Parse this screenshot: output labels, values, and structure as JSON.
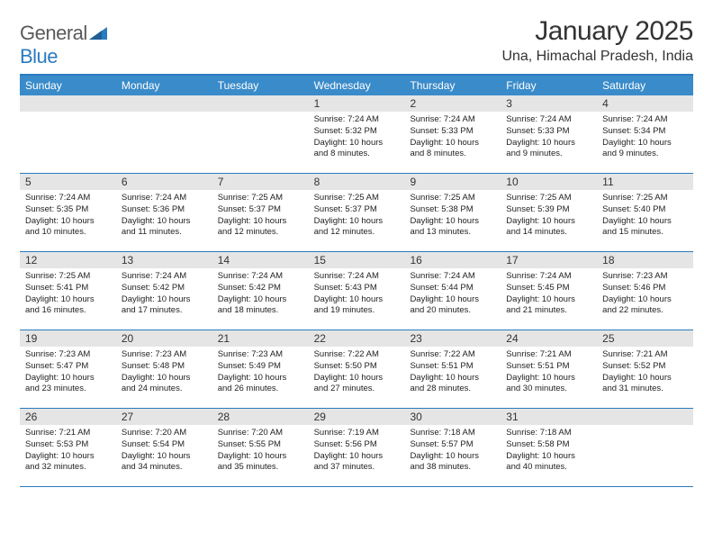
{
  "logo": {
    "wordA": "General",
    "wordB": "Blue"
  },
  "title": "January 2025",
  "location": "Una, Himachal Pradesh, India",
  "weekdays": [
    "Sunday",
    "Monday",
    "Tuesday",
    "Wednesday",
    "Thursday",
    "Friday",
    "Saturday"
  ],
  "colors": {
    "header_bar": "#3a8bc9",
    "border": "#2b7bbf",
    "daynum_bg": "#e5e5e5",
    "text": "#333333"
  },
  "weeks": [
    [
      null,
      null,
      null,
      {
        "n": "1",
        "sr": "Sunrise: 7:24 AM",
        "ss": "Sunset: 5:32 PM",
        "dl": "Daylight: 10 hours and 8 minutes."
      },
      {
        "n": "2",
        "sr": "Sunrise: 7:24 AM",
        "ss": "Sunset: 5:33 PM",
        "dl": "Daylight: 10 hours and 8 minutes."
      },
      {
        "n": "3",
        "sr": "Sunrise: 7:24 AM",
        "ss": "Sunset: 5:33 PM",
        "dl": "Daylight: 10 hours and 9 minutes."
      },
      {
        "n": "4",
        "sr": "Sunrise: 7:24 AM",
        "ss": "Sunset: 5:34 PM",
        "dl": "Daylight: 10 hours and 9 minutes."
      }
    ],
    [
      {
        "n": "5",
        "sr": "Sunrise: 7:24 AM",
        "ss": "Sunset: 5:35 PM",
        "dl": "Daylight: 10 hours and 10 minutes."
      },
      {
        "n": "6",
        "sr": "Sunrise: 7:24 AM",
        "ss": "Sunset: 5:36 PM",
        "dl": "Daylight: 10 hours and 11 minutes."
      },
      {
        "n": "7",
        "sr": "Sunrise: 7:25 AM",
        "ss": "Sunset: 5:37 PM",
        "dl": "Daylight: 10 hours and 12 minutes."
      },
      {
        "n": "8",
        "sr": "Sunrise: 7:25 AM",
        "ss": "Sunset: 5:37 PM",
        "dl": "Daylight: 10 hours and 12 minutes."
      },
      {
        "n": "9",
        "sr": "Sunrise: 7:25 AM",
        "ss": "Sunset: 5:38 PM",
        "dl": "Daylight: 10 hours and 13 minutes."
      },
      {
        "n": "10",
        "sr": "Sunrise: 7:25 AM",
        "ss": "Sunset: 5:39 PM",
        "dl": "Daylight: 10 hours and 14 minutes."
      },
      {
        "n": "11",
        "sr": "Sunrise: 7:25 AM",
        "ss": "Sunset: 5:40 PM",
        "dl": "Daylight: 10 hours and 15 minutes."
      }
    ],
    [
      {
        "n": "12",
        "sr": "Sunrise: 7:25 AM",
        "ss": "Sunset: 5:41 PM",
        "dl": "Daylight: 10 hours and 16 minutes."
      },
      {
        "n": "13",
        "sr": "Sunrise: 7:24 AM",
        "ss": "Sunset: 5:42 PM",
        "dl": "Daylight: 10 hours and 17 minutes."
      },
      {
        "n": "14",
        "sr": "Sunrise: 7:24 AM",
        "ss": "Sunset: 5:42 PM",
        "dl": "Daylight: 10 hours and 18 minutes."
      },
      {
        "n": "15",
        "sr": "Sunrise: 7:24 AM",
        "ss": "Sunset: 5:43 PM",
        "dl": "Daylight: 10 hours and 19 minutes."
      },
      {
        "n": "16",
        "sr": "Sunrise: 7:24 AM",
        "ss": "Sunset: 5:44 PM",
        "dl": "Daylight: 10 hours and 20 minutes."
      },
      {
        "n": "17",
        "sr": "Sunrise: 7:24 AM",
        "ss": "Sunset: 5:45 PM",
        "dl": "Daylight: 10 hours and 21 minutes."
      },
      {
        "n": "18",
        "sr": "Sunrise: 7:23 AM",
        "ss": "Sunset: 5:46 PM",
        "dl": "Daylight: 10 hours and 22 minutes."
      }
    ],
    [
      {
        "n": "19",
        "sr": "Sunrise: 7:23 AM",
        "ss": "Sunset: 5:47 PM",
        "dl": "Daylight: 10 hours and 23 minutes."
      },
      {
        "n": "20",
        "sr": "Sunrise: 7:23 AM",
        "ss": "Sunset: 5:48 PM",
        "dl": "Daylight: 10 hours and 24 minutes."
      },
      {
        "n": "21",
        "sr": "Sunrise: 7:23 AM",
        "ss": "Sunset: 5:49 PM",
        "dl": "Daylight: 10 hours and 26 minutes."
      },
      {
        "n": "22",
        "sr": "Sunrise: 7:22 AM",
        "ss": "Sunset: 5:50 PM",
        "dl": "Daylight: 10 hours and 27 minutes."
      },
      {
        "n": "23",
        "sr": "Sunrise: 7:22 AM",
        "ss": "Sunset: 5:51 PM",
        "dl": "Daylight: 10 hours and 28 minutes."
      },
      {
        "n": "24",
        "sr": "Sunrise: 7:21 AM",
        "ss": "Sunset: 5:51 PM",
        "dl": "Daylight: 10 hours and 30 minutes."
      },
      {
        "n": "25",
        "sr": "Sunrise: 7:21 AM",
        "ss": "Sunset: 5:52 PM",
        "dl": "Daylight: 10 hours and 31 minutes."
      }
    ],
    [
      {
        "n": "26",
        "sr": "Sunrise: 7:21 AM",
        "ss": "Sunset: 5:53 PM",
        "dl": "Daylight: 10 hours and 32 minutes."
      },
      {
        "n": "27",
        "sr": "Sunrise: 7:20 AM",
        "ss": "Sunset: 5:54 PM",
        "dl": "Daylight: 10 hours and 34 minutes."
      },
      {
        "n": "28",
        "sr": "Sunrise: 7:20 AM",
        "ss": "Sunset: 5:55 PM",
        "dl": "Daylight: 10 hours and 35 minutes."
      },
      {
        "n": "29",
        "sr": "Sunrise: 7:19 AM",
        "ss": "Sunset: 5:56 PM",
        "dl": "Daylight: 10 hours and 37 minutes."
      },
      {
        "n": "30",
        "sr": "Sunrise: 7:18 AM",
        "ss": "Sunset: 5:57 PM",
        "dl": "Daylight: 10 hours and 38 minutes."
      },
      {
        "n": "31",
        "sr": "Sunrise: 7:18 AM",
        "ss": "Sunset: 5:58 PM",
        "dl": "Daylight: 10 hours and 40 minutes."
      },
      null
    ]
  ]
}
